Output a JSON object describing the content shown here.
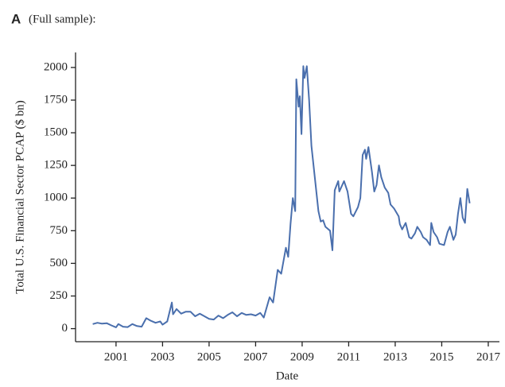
{
  "chart_data": {
    "type": "line",
    "panel_label": "A",
    "title": "(Full sample):",
    "x_label": "Date",
    "y_label": "Total U.S. Financial Sector PCAP ($ bn)",
    "color": "#4a6fad",
    "x": [
      2000.0,
      2000.2,
      2000.4,
      2000.6,
      2000.8,
      2001.0,
      2001.1,
      2001.3,
      2001.5,
      2001.7,
      2001.9,
      2002.1,
      2002.3,
      2002.5,
      2002.7,
      2002.9,
      2003.0,
      2003.2,
      2003.4,
      2003.45,
      2003.6,
      2003.8,
      2004.0,
      2004.2,
      2004.4,
      2004.6,
      2004.8,
      2005.0,
      2005.2,
      2005.4,
      2005.6,
      2005.8,
      2006.0,
      2006.2,
      2006.4,
      2006.6,
      2006.8,
      2007.0,
      2007.2,
      2007.35,
      2007.6,
      2007.75,
      2007.95,
      2008.1,
      2008.3,
      2008.4,
      2008.5,
      2008.6,
      2008.7,
      2008.75,
      2008.85,
      2008.9,
      2008.97,
      2009.05,
      2009.1,
      2009.2,
      2009.3,
      2009.4,
      2009.55,
      2009.7,
      2009.8,
      2009.9,
      2010.0,
      2010.2,
      2010.3,
      2010.4,
      2010.55,
      2010.6,
      2010.8,
      2010.95,
      2011.1,
      2011.2,
      2011.4,
      2011.5,
      2011.6,
      2011.7,
      2011.75,
      2011.85,
      2012.0,
      2012.1,
      2012.2,
      2012.3,
      2012.4,
      2012.55,
      2012.7,
      2012.8,
      2012.95,
      2013.15,
      2013.2,
      2013.3,
      2013.45,
      2013.6,
      2013.7,
      2013.85,
      2013.95,
      2014.1,
      2014.2,
      2014.35,
      2014.5,
      2014.55,
      2014.65,
      2014.8,
      2014.9,
      2015.1,
      2015.25,
      2015.35,
      2015.5,
      2015.6,
      2015.7,
      2015.8,
      2015.9,
      2016.0,
      2016.1,
      2016.2
    ],
    "values": [
      35,
      45,
      38,
      42,
      25,
      10,
      35,
      15,
      12,
      35,
      20,
      15,
      80,
      60,
      45,
      55,
      30,
      55,
      200,
      110,
      150,
      115,
      130,
      130,
      95,
      115,
      95,
      75,
      70,
      100,
      80,
      105,
      125,
      95,
      120,
      105,
      110,
      100,
      120,
      85,
      240,
      200,
      450,
      420,
      620,
      550,
      800,
      1000,
      900,
      1910,
      1700,
      1780,
      1490,
      2010,
      1920,
      2010,
      1750,
      1400,
      1150,
      900,
      820,
      830,
      780,
      750,
      600,
      1060,
      1130,
      1050,
      1130,
      1050,
      880,
      860,
      930,
      1000,
      1330,
      1370,
      1300,
      1390,
      1200,
      1050,
      1100,
      1250,
      1160,
      1080,
      1040,
      950,
      920,
      860,
      800,
      760,
      810,
      700,
      690,
      730,
      780,
      740,
      700,
      680,
      640,
      810,
      740,
      700,
      650,
      640,
      740,
      780,
      680,
      720,
      880,
      1000,
      850,
      810,
      1070,
      960
    ],
    "xlim": [
      1999.26,
      2017.48
    ],
    "ylim": [
      -100,
      2115
    ],
    "xticks": [
      2001,
      2003,
      2005,
      2007,
      2009,
      2011,
      2013,
      2015,
      2017
    ],
    "yticks": [
      0,
      250,
      500,
      750,
      1000,
      1250,
      1500,
      1750,
      2000
    ]
  }
}
